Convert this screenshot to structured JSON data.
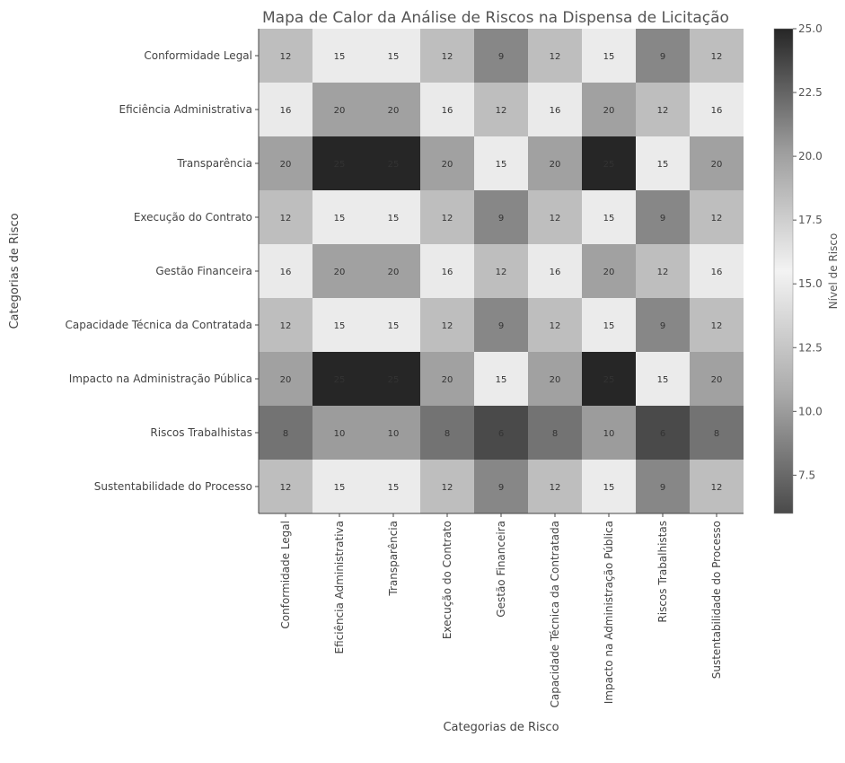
{
  "chart_data": {
    "type": "heatmap",
    "title": "Mapa de Calor da Análise de Riscos na Dispensa de Licitação",
    "xlabel": "Categorias de Risco",
    "ylabel": "Categorias de Risco",
    "row_labels": [
      "Conformidade Legal",
      "Eficiência Administrativa",
      "Transparência",
      "Execução do Contrato",
      "Gestão Financeira",
      "Capacidade Técnica da Contratada",
      "Impacto na Administração Pública",
      "Riscos Trabalhistas",
      "Sustentabilidade do Processo"
    ],
    "col_labels": [
      "Conformidade Legal",
      "Eficiência Administrativa",
      "Transparência",
      "Execução do Contrato",
      "Gestão Financeira",
      "Capacidade Técnica da Contratada",
      "Impacto na Administração Pública",
      "Riscos Trabalhistas",
      "Sustentabilidade do Processo"
    ],
    "values": [
      [
        12,
        15,
        15,
        12,
        9,
        12,
        15,
        9,
        12
      ],
      [
        16,
        20,
        20,
        16,
        12,
        16,
        20,
        12,
        16
      ],
      [
        20,
        25,
        25,
        20,
        15,
        20,
        25,
        15,
        20
      ],
      [
        12,
        15,
        15,
        12,
        9,
        12,
        15,
        9,
        12
      ],
      [
        16,
        20,
        20,
        16,
        12,
        16,
        20,
        12,
        16
      ],
      [
        12,
        15,
        15,
        12,
        9,
        12,
        15,
        9,
        12
      ],
      [
        20,
        25,
        25,
        20,
        15,
        20,
        25,
        15,
        20
      ],
      [
        8,
        10,
        10,
        8,
        6,
        8,
        10,
        6,
        8
      ],
      [
        12,
        15,
        15,
        12,
        9,
        12,
        15,
        9,
        12
      ]
    ],
    "colorbar": {
      "label": "Nível de Risco",
      "range": [
        6,
        25
      ],
      "ticks": [
        7.5,
        10.0,
        12.5,
        15.0,
        17.5,
        20.0,
        22.5,
        25.0
      ],
      "tick_labels": [
        "7.5",
        "10.0",
        "12.5",
        "15.0",
        "17.5",
        "20.0",
        "22.5",
        "25.0"
      ]
    },
    "colormap_stops": [
      "#4a4a4a",
      "#ababab",
      "#f3f3f3",
      "#9c9c9c",
      "#262626"
    ]
  }
}
